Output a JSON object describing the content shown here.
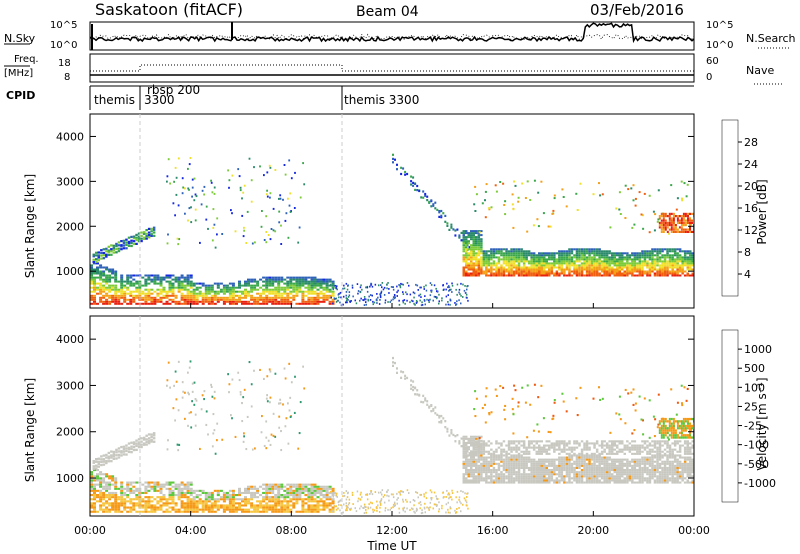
{
  "header": {
    "station": "Saskatoon (fitACF)",
    "beam": "Beam 04",
    "date": "03/Feb/2016"
  },
  "noise_panel": {
    "left_label": "N.Sky",
    "left_ticks": [
      "10^5",
      "10^0"
    ],
    "right_ticks": [
      "10^5",
      "10^0"
    ],
    "right_label": "N.Search"
  },
  "freq_panel": {
    "left_label_line1": "Freq.",
    "left_label_line2": "[MHz]",
    "left_ticks": [
      "18",
      "8"
    ],
    "right_ticks": [
      "60",
      "0"
    ],
    "right_label": "Nave"
  },
  "cpid_panel": {
    "label": "CPID",
    "modes": [
      {
        "name": "themis",
        "start_hour": 0.0
      },
      {
        "name": "3300",
        "start_hour": 0.0
      },
      {
        "name": "rbsp 200",
        "start_hour": 2.0
      },
      {
        "name": "themis 3300",
        "start_hour": 10.0
      }
    ]
  },
  "colors": {
    "power_scale": [
      "#1428e0",
      "#2e61b8",
      "#2a8a6a",
      "#3aa84a",
      "#7ecb3a",
      "#f0e02a",
      "#f5a019",
      "#f06010",
      "#e8200f"
    ],
    "velocity_scale": [
      "#e8200f",
      "#f05a10",
      "#f59a18",
      "#f7c640",
      "#c8c8c0",
      "#c8c8c0",
      "#5cc83c",
      "#2f9a70",
      "#2b6ab8",
      "#1a3ac8"
    ],
    "ground_scatter": "#c8c8c0"
  },
  "chart_data": [
    {
      "type": "heatmap",
      "title": "Power",
      "ylabel": "Slant Range [km]",
      "xlabel": "",
      "xlim": [
        "00:00",
        "24:00"
      ],
      "ylim": [
        180,
        4500
      ],
      "y_ticks": [
        "1000",
        "2000",
        "3000",
        "4000"
      ],
      "colorbar_label": "Power [dB]",
      "colorbar_ticks": [
        "28",
        "24",
        "20",
        "16",
        "12",
        "8",
        "4"
      ],
      "colorbar_range": [
        0,
        32
      ],
      "features": [
        {
          "name": "near-range band",
          "t_start": 0.0,
          "t_end": 9.5,
          "range_km": [
            250,
            900
          ],
          "power_db": 24
        },
        {
          "name": "afternoon band",
          "t_start": 15.0,
          "t_end": 24.0,
          "range_km": [
            900,
            1500
          ],
          "power_db": 22
        },
        {
          "name": "far-range patches",
          "t_start": 3.0,
          "t_end": 8.0,
          "range_km": [
            2500,
            3400
          ],
          "power_db": 6
        }
      ]
    },
    {
      "type": "heatmap",
      "title": "Velocity",
      "ylabel": "Slant Range [km]",
      "xlabel": "Time UT",
      "xlim": [
        "00:00",
        "24:00"
      ],
      "ylim": [
        180,
        4500
      ],
      "x_ticks": [
        "00:00",
        "04:00",
        "08:00",
        "12:00",
        "16:00",
        "20:00",
        "00:00"
      ],
      "y_ticks": [
        "1000",
        "2000",
        "3000",
        "4000"
      ],
      "colorbar_label": "Velocity [m s⁻¹]",
      "colorbar_ticks": [
        "1000",
        "500",
        "100",
        "25",
        "-25",
        "-100",
        "-500",
        "-1000"
      ],
      "features": [
        {
          "name": "ground scatter",
          "t_start": 15.0,
          "t_end": 24.0,
          "range_km": [
            900,
            1700
          ],
          "velocity": 0
        },
        {
          "name": "near-range negative",
          "t_start": 0.0,
          "t_end": 9.5,
          "range_km": [
            250,
            800
          ],
          "velocity": -150
        }
      ]
    }
  ]
}
